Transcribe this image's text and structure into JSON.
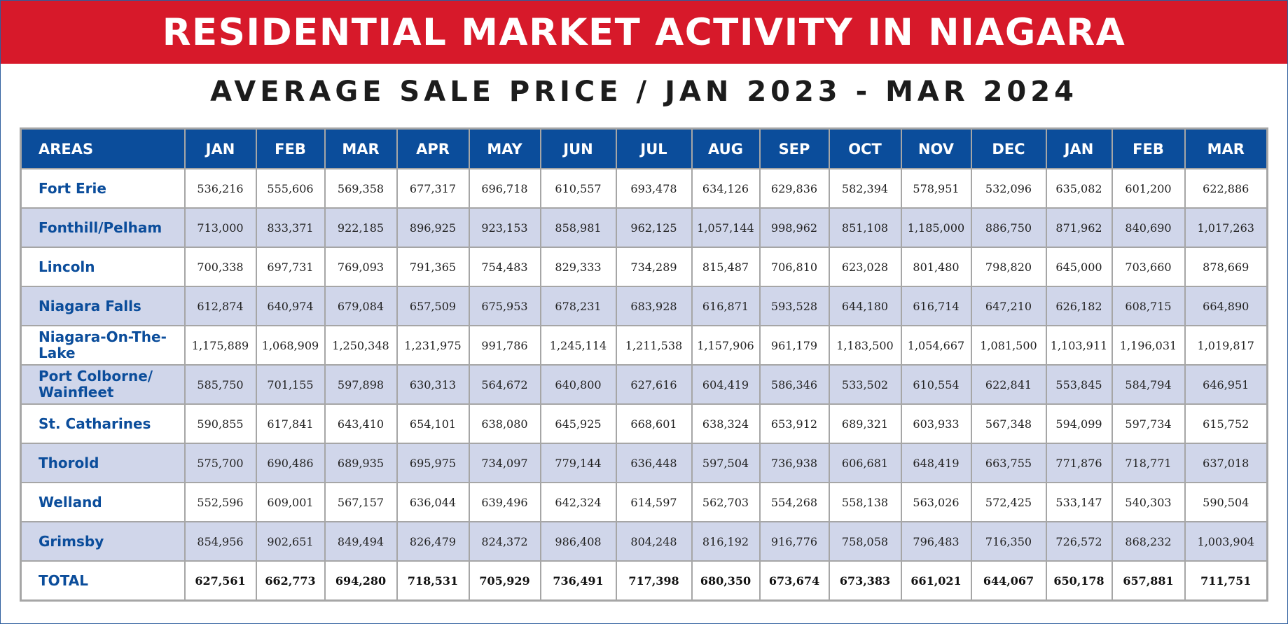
{
  "title": "RESIDENTIAL MARKET ACTIVITY IN NIAGARA",
  "subtitle": "AVERAGE SALE PRICE / JAN 2023 - MAR 2024",
  "colors": {
    "banner": "#d7192a",
    "header": "#0b4d9b",
    "alt_row": "#d0d6ea",
    "area_text": "#0b4d9b"
  },
  "columns": [
    "AREAS",
    "JAN",
    "FEB",
    "MAR",
    "APR",
    "MAY",
    "JUN",
    "JUL",
    "AUG",
    "SEP",
    "OCT",
    "NOV",
    "DEC",
    "JAN",
    "FEB",
    "MAR"
  ],
  "rows": [
    {
      "area": "Fort Erie",
      "values": [
        "536,216",
        "555,606",
        "569,358",
        "677,317",
        "696,718",
        "610,557",
        "693,478",
        "634,126",
        "629,836",
        "582,394",
        "578,951",
        "532,096",
        "635,082",
        "601,200",
        "622,886"
      ]
    },
    {
      "area": "Fonthill/Pelham",
      "values": [
        "713,000",
        "833,371",
        "922,185",
        "896,925",
        "923,153",
        "858,981",
        "962,125",
        "1,057,144",
        "998,962",
        "851,108",
        "1,185,000",
        "886,750",
        "871,962",
        "840,690",
        "1,017,263"
      ]
    },
    {
      "area": "Lincoln",
      "values": [
        "700,338",
        "697,731",
        "769,093",
        "791,365",
        "754,483",
        "829,333",
        "734,289",
        "815,487",
        "706,810",
        "623,028",
        "801,480",
        "798,820",
        "645,000",
        "703,660",
        "878,669"
      ]
    },
    {
      "area": "Niagara Falls",
      "values": [
        "612,874",
        "640,974",
        "679,084",
        "657,509",
        "675,953",
        "678,231",
        "683,928",
        "616,871",
        "593,528",
        "644,180",
        "616,714",
        "647,210",
        "626,182",
        "608,715",
        "664,890"
      ]
    },
    {
      "area": "Niagara-On-The-Lake",
      "values": [
        "1,175,889",
        "1,068,909",
        "1,250,348",
        "1,231,975",
        "991,786",
        "1,245,114",
        "1,211,538",
        "1,157,906",
        "961,179",
        "1,183,500",
        "1,054,667",
        "1,081,500",
        "1,103,911",
        "1,196,031",
        "1,019,817"
      ]
    },
    {
      "area": "Port Colborne/ Wainfleet",
      "values": [
        "585,750",
        "701,155",
        "597,898",
        "630,313",
        "564,672",
        "640,800",
        "627,616",
        "604,419",
        "586,346",
        "533,502",
        "610,554",
        "622,841",
        "553,845",
        "584,794",
        "646,951"
      ]
    },
    {
      "area": "St. Catharines",
      "values": [
        "590,855",
        "617,841",
        "643,410",
        "654,101",
        "638,080",
        "645,925",
        "668,601",
        "638,324",
        "653,912",
        "689,321",
        "603,933",
        "567,348",
        "594,099",
        "597,734",
        "615,752"
      ]
    },
    {
      "area": "Thorold",
      "values": [
        "575,700",
        "690,486",
        "689,935",
        "695,975",
        "734,097",
        "779,144",
        "636,448",
        "597,504",
        "736,938",
        "606,681",
        "648,419",
        "663,755",
        "771,876",
        "718,771",
        "637,018"
      ]
    },
    {
      "area": "Welland",
      "values": [
        "552,596",
        "609,001",
        "567,157",
        "636,044",
        "639,496",
        "642,324",
        "614,597",
        "562,703",
        "554,268",
        "558,138",
        "563,026",
        "572,425",
        "533,147",
        "540,303",
        "590,504"
      ]
    },
    {
      "area": "Grimsby",
      "values": [
        "854,956",
        "902,651",
        "849,494",
        "826,479",
        "824,372",
        "986,408",
        "804,248",
        "816,192",
        "916,776",
        "758,058",
        "796,483",
        "716,350",
        "726,572",
        "868,232",
        "1,003,904"
      ]
    }
  ],
  "total": {
    "area": "TOTAL",
    "values": [
      "627,561",
      "662,773",
      "694,280",
      "718,531",
      "705,929",
      "736,491",
      "717,398",
      "680,350",
      "673,674",
      "673,383",
      "661,021",
      "644,067",
      "650,178",
      "657,881",
      "711,751"
    ]
  }
}
